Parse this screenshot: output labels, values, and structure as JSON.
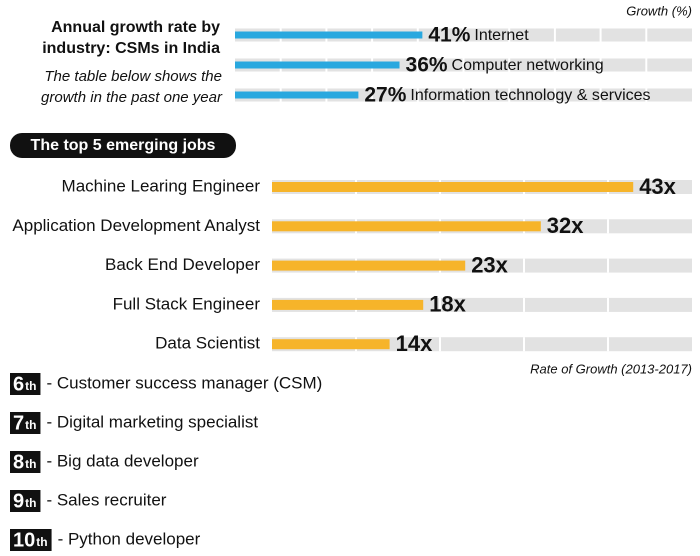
{
  "chart_data": [
    {
      "type": "bar",
      "orientation": "horizontal",
      "title": "Annual growth rate by industry: CSMs in India",
      "subtitle": "The table below shows the growth in the past one year",
      "x_label": "Growth (%)",
      "categories": [
        "Internet",
        "Computer networking",
        "Information technology & services"
      ],
      "values": [
        41,
        36,
        27
      ],
      "value_labels": [
        "41%",
        "36%",
        "27%"
      ],
      "color": "#29a8df",
      "xlim": [
        0,
        100
      ]
    },
    {
      "type": "bar",
      "orientation": "horizontal",
      "title": "The top 5 emerging jobs",
      "x_label": "Rate of Growth (2013-2017)",
      "categories": [
        "Machine Learing Engineer",
        "Application Development Analyst",
        "Back End Developer",
        "Full Stack Engineer",
        "Data Scientist"
      ],
      "values": [
        43,
        32,
        23,
        18,
        14
      ],
      "value_labels": [
        "43x",
        "32x",
        "23x",
        "18x",
        "14x"
      ],
      "color": "#f6b42a",
      "xlim": [
        0,
        50
      ]
    }
  ],
  "ranked_list": [
    {
      "rank": "6",
      "suffix": "th",
      "text": "- Customer success manager (CSM)"
    },
    {
      "rank": "7",
      "suffix": "th",
      "text": "- Digital marketing specialist"
    },
    {
      "rank": "8",
      "suffix": "th",
      "text": "- Big data developer"
    },
    {
      "rank": "9",
      "suffix": "th",
      "text": "- Sales recruiter"
    },
    {
      "rank": "10",
      "suffix": "th",
      "text": "- Python developer"
    }
  ]
}
